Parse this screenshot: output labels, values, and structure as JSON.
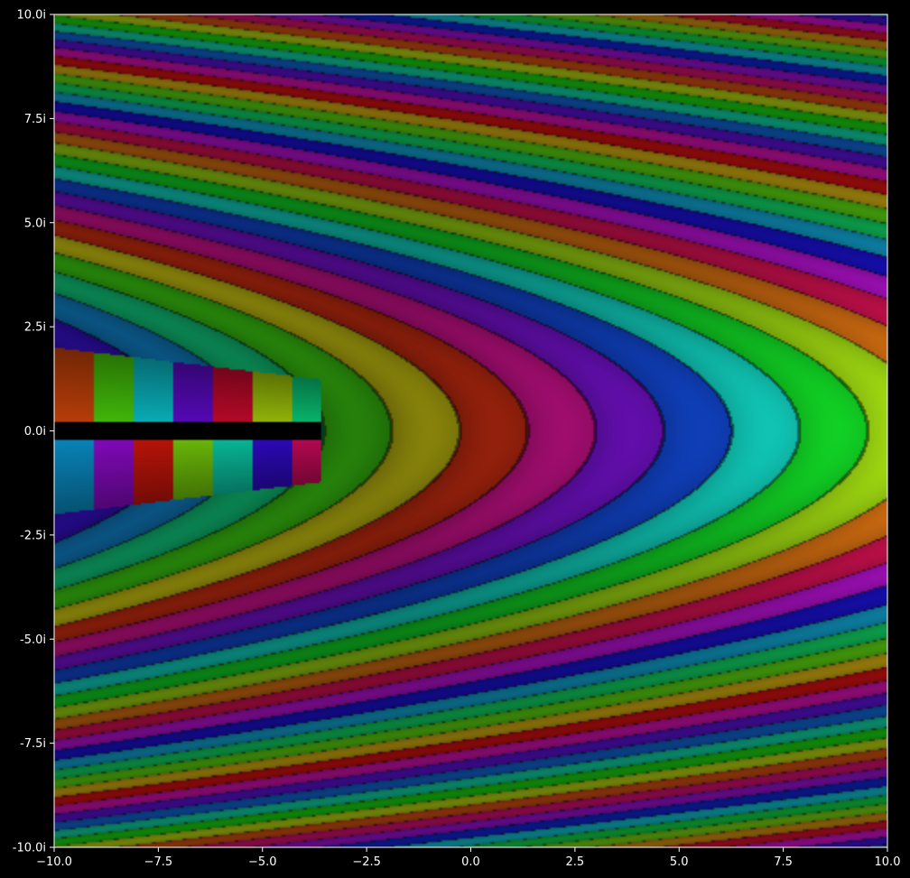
{
  "chart_data": {
    "type": "heatmap",
    "title": "",
    "xlabel": "",
    "ylabel": "",
    "xlim": [
      -10.0,
      10.0
    ],
    "ylim": [
      -10.0,
      10.0
    ],
    "grid": false,
    "x_ticks": [
      {
        "value": -10.0,
        "label": "−10.0"
      },
      {
        "value": -7.5,
        "label": "−7.5"
      },
      {
        "value": -5.0,
        "label": "−5.0"
      },
      {
        "value": -2.5,
        "label": "−2.5"
      },
      {
        "value": 0.0,
        "label": "0.0"
      },
      {
        "value": 2.5,
        "label": "2.5"
      },
      {
        "value": 5.0,
        "label": "5.0"
      },
      {
        "value": 7.5,
        "label": "7.5"
      },
      {
        "value": 10.0,
        "label": "10.0"
      }
    ],
    "y_ticks": [
      {
        "value": 10.0,
        "label": "10.0i"
      },
      {
        "value": 7.5,
        "label": "7.5i"
      },
      {
        "value": 5.0,
        "label": "5.0i"
      },
      {
        "value": 2.5,
        "label": "2.5i"
      },
      {
        "value": 0.0,
        "label": "0.0i"
      },
      {
        "value": -2.5,
        "label": "-2.5i"
      },
      {
        "value": -5.0,
        "label": "-5.0i"
      },
      {
        "value": -7.5,
        "label": "-7.5i"
      },
      {
        "value": -10.0,
        "label": "-10.0i"
      }
    ],
    "colors": {
      "background": "#000000",
      "axis": "#ffffff"
    }
  }
}
